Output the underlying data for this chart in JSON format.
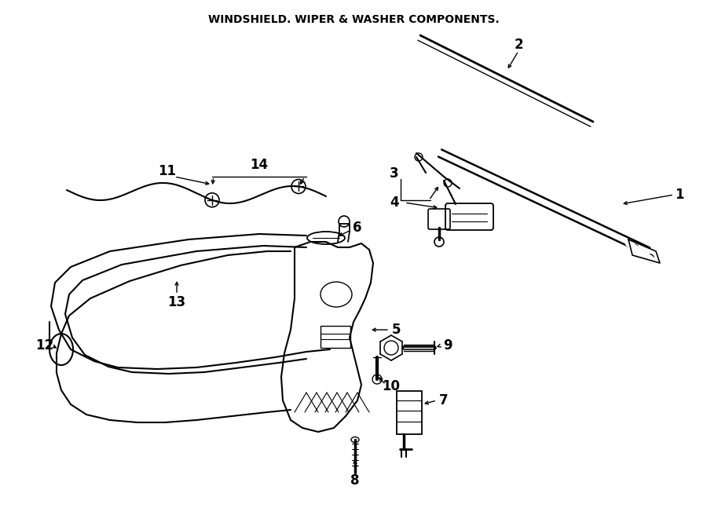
{
  "title": "WINDSHIELD. WIPER & WASHER COMPONENTS.",
  "bg_color": "#ffffff",
  "line_color": "#000000",
  "figsize": [
    9.0,
    6.61
  ],
  "dpi": 100,
  "xlim": [
    0,
    900
  ],
  "ylim": [
    661,
    0
  ]
}
